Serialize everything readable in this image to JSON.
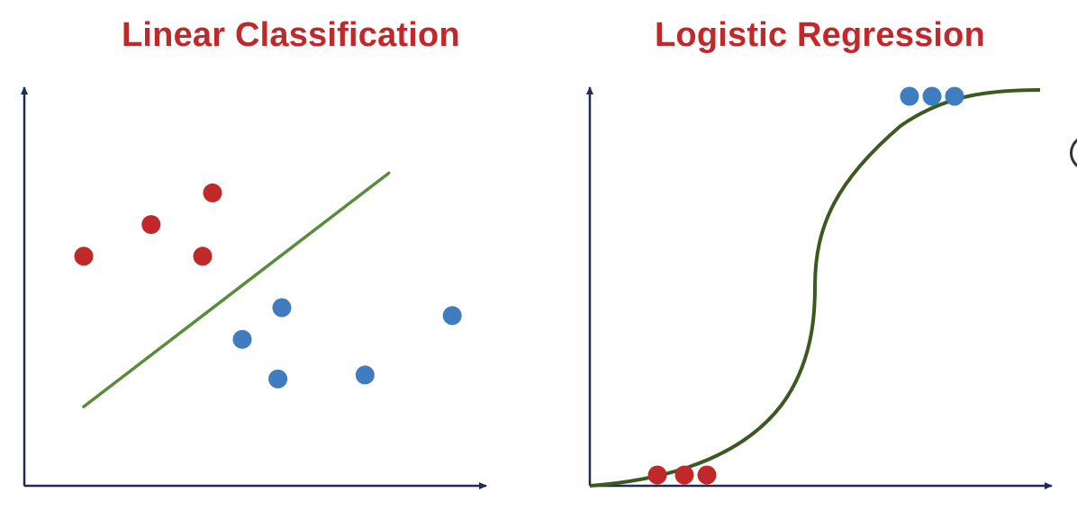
{
  "colors": {
    "title": "#c0282a",
    "axis": "#1f2a55",
    "class_red": "#c0282a",
    "class_blue": "#3f7cc0",
    "linear_boundary": "#5b8c3a",
    "sigmoid_curve": "#3a5a20"
  },
  "panels": {
    "left": {
      "title": "Linear Classification",
      "red_points": [
        {
          "x": 1.5,
          "y": 5.8
        },
        {
          "x": 3.2,
          "y": 6.6
        },
        {
          "x": 4.75,
          "y": 7.4
        },
        {
          "x": 4.5,
          "y": 5.8
        }
      ],
      "blue_points": [
        {
          "x": 6.5,
          "y": 4.5
        },
        {
          "x": 5.5,
          "y": 3.7
        },
        {
          "x": 6.4,
          "y": 2.7
        },
        {
          "x": 8.6,
          "y": 2.8
        },
        {
          "x": 10.8,
          "y": 4.3
        }
      ],
      "boundary": {
        "from": {
          "x": 1.5,
          "y": 2.0
        },
        "to": {
          "x": 9.2,
          "y": 7.9
        }
      }
    },
    "right": {
      "title": "Logistic Regression",
      "red_points": [
        {
          "x": 0.15,
          "y": 0.0
        },
        {
          "x": 0.21,
          "y": 0.0
        },
        {
          "x": 0.26,
          "y": 0.0
        }
      ],
      "blue_points": [
        {
          "x": 0.71,
          "y": 1.0
        },
        {
          "x": 0.76,
          "y": 1.0
        },
        {
          "x": 0.81,
          "y": 1.0
        }
      ]
    }
  }
}
